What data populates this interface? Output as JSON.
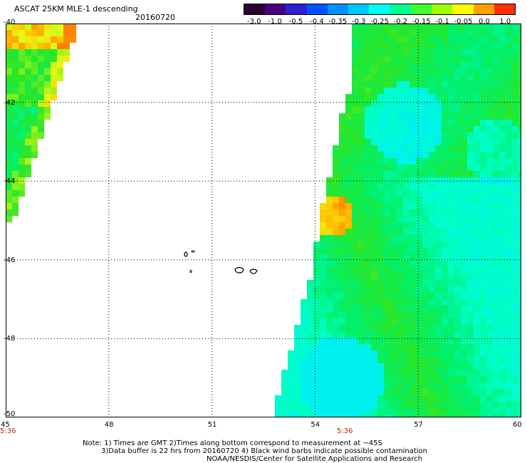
{
  "header": {
    "title": "ASCAT 25KM MLE-1 descending",
    "date": "20160720"
  },
  "colorbar": {
    "labels": [
      "-3.0",
      "-1.0",
      "-0.5",
      "-0.4",
      "-0.35",
      "-0.3",
      "-0.25",
      "-0.2",
      "-0.15",
      "-0.1",
      "-0.05",
      "0.0",
      "1.0"
    ],
    "colors": [
      "#2a0030",
      "#4a0080",
      "#3020d0",
      "#0050ff",
      "#0090ff",
      "#00c8ff",
      "#00ffee",
      "#00ff90",
      "#40ff30",
      "#a0ff00",
      "#ffff00",
      "#ffa000",
      "#ff3000"
    ]
  },
  "chart_data": {
    "type": "heatmap",
    "title": "ASCAT 25KM MLE-1 descending",
    "date": "20160720",
    "x_ticks": [
      45,
      48,
      51,
      54,
      57,
      60
    ],
    "y_ticks": [
      -40,
      -42,
      -44,
      -46,
      -48,
      -50
    ],
    "xlim": [
      45,
      60
    ],
    "ylim": [
      -50,
      -40
    ],
    "colorscale_labels": [
      "-3.0",
      "-1.0",
      "-0.5",
      "-0.4",
      "-0.35",
      "-0.3",
      "-0.25",
      "-0.2",
      "-0.15",
      "-0.1",
      "-0.05",
      "0.0",
      "1.0"
    ],
    "time_labels": [
      {
        "lon": 45,
        "text": "5:36"
      },
      {
        "lon": 55,
        "text": "5:36"
      }
    ]
  },
  "axes": {
    "x_labels": [
      "45",
      "48",
      "51",
      "54",
      "57",
      "60"
    ],
    "y_labels": [
      "-40",
      "-42",
      "-44",
      "-46",
      "-48",
      "-50"
    ],
    "time_left": "5:36",
    "time_mid": "5:36"
  },
  "notes": {
    "line1": "Note: 1) Times are GMT 2)Times along bottom correspond to measurement at ~45S",
    "line2": "3)Data buffer is 22 hrs from 20160720 4) Black wind barbs indicate possible contamination",
    "line3": "NOAA/NESDIS/Center for Satellite Applications and Research"
  }
}
